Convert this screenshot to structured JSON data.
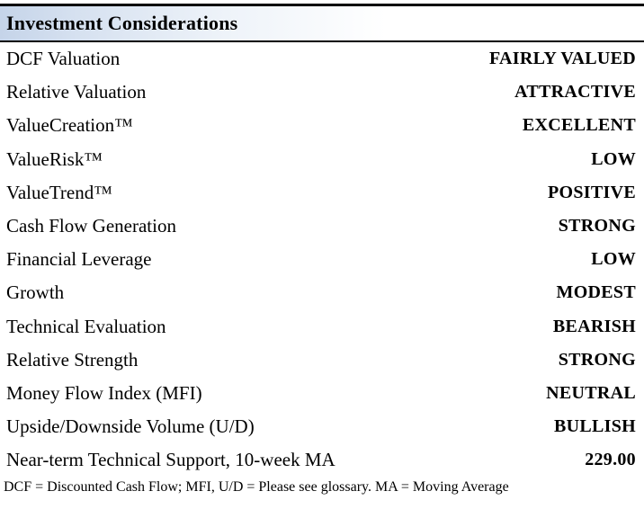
{
  "table": {
    "title": "Investment Considerations",
    "rows": [
      {
        "label": "DCF Valuation",
        "value": "FAIRLY VALUED"
      },
      {
        "label": "Relative Valuation",
        "value": "ATTRACTIVE"
      },
      {
        "label": "ValueCreation™",
        "value": "EXCELLENT"
      },
      {
        "label": "ValueRisk™",
        "value": "LOW"
      },
      {
        "label": "ValueTrend™",
        "value": "POSITIVE"
      },
      {
        "label": "Cash Flow Generation",
        "value": "STRONG"
      },
      {
        "label": "Financial Leverage",
        "value": "LOW"
      },
      {
        "label": "Growth",
        "value": "MODEST"
      },
      {
        "label": "Technical Evaluation",
        "value": "BEARISH"
      },
      {
        "label": "Relative Strength",
        "value": "STRONG"
      },
      {
        "label": "Money Flow Index (MFI)",
        "value": "NEUTRAL"
      },
      {
        "label": "Upside/Downside Volume (U/D)",
        "value": "BULLISH"
      },
      {
        "label": "Near-term Technical Support, 10-week MA",
        "value": "229.00"
      }
    ],
    "footnote": "DCF = Discounted Cash Flow; MFI, U/D = Please see glossary. MA = Moving Average"
  },
  "colors": {
    "header_gradient_start": "#c5d4e9",
    "header_gradient_end": "#ffffff",
    "rule": "#000000",
    "text": "#000000"
  }
}
